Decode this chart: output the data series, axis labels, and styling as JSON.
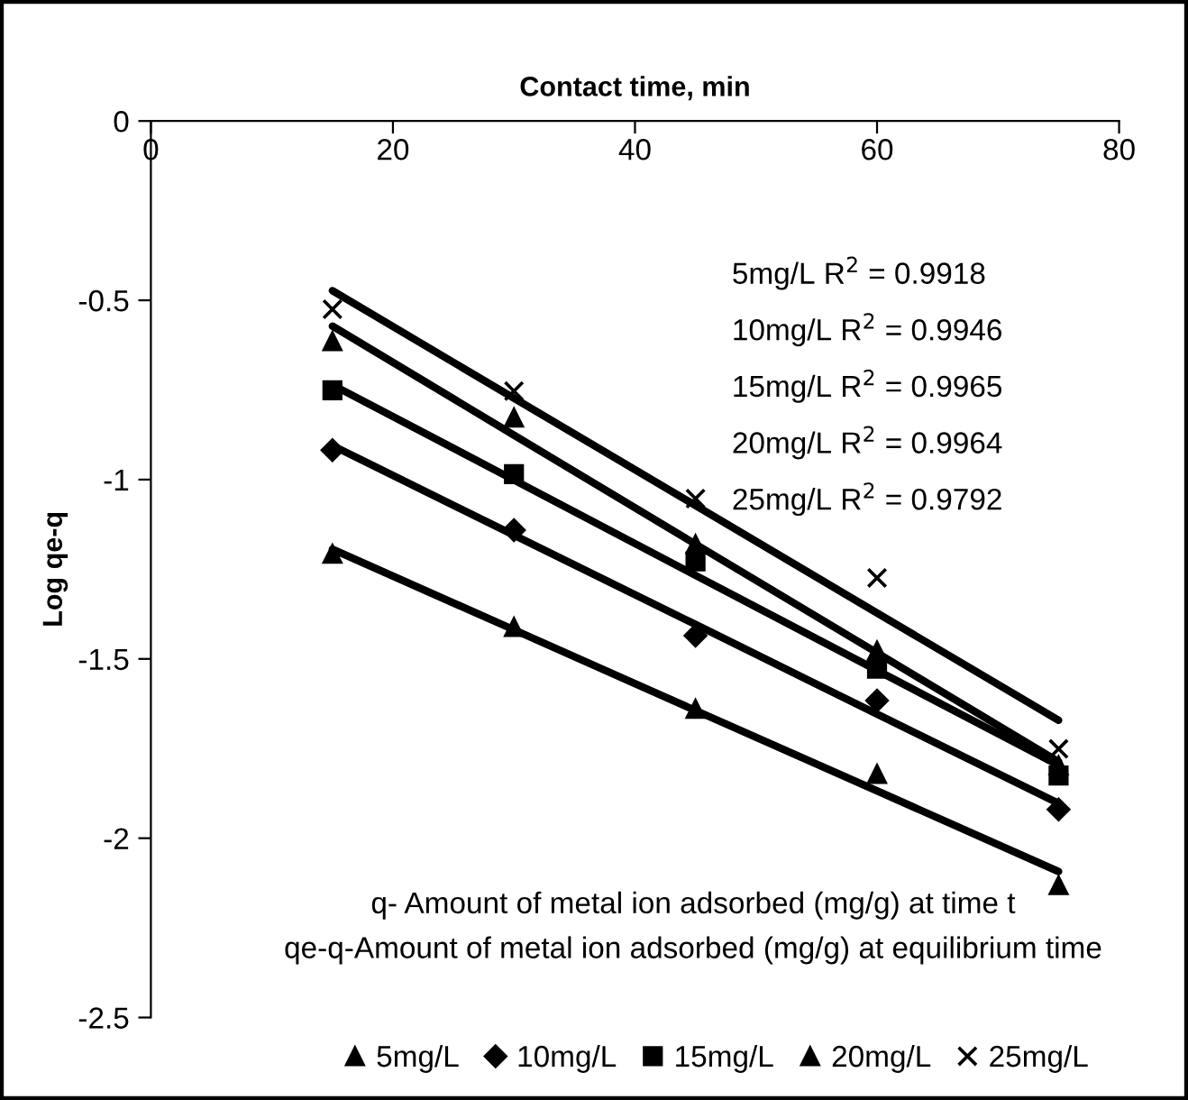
{
  "chart_data": {
    "type": "scatter",
    "xlabel": "Contact time, min",
    "ylabel": "Log qe-q",
    "xlim": [
      0,
      80
    ],
    "xticks": [
      0,
      20,
      40,
      60,
      80
    ],
    "ylim": [
      -2.5,
      0
    ],
    "yticks": [
      0,
      -0.5,
      -1,
      -1.5,
      -2,
      -2.5
    ],
    "grid": false,
    "legend": "bottom",
    "x": [
      15,
      30,
      45,
      60,
      75
    ],
    "series": [
      {
        "name": "5mg/L",
        "color": "#000000",
        "marker": "triangle",
        "values": [
          -1.207,
          -1.411,
          -1.639,
          -1.821,
          -2.131
        ]
      },
      {
        "name": "10mg/L",
        "color": "#000000",
        "marker": "diamond",
        "values": [
          -0.918,
          -1.141,
          -1.435,
          -1.616,
          -1.92
        ]
      },
      {
        "name": "15mg/L",
        "color": "#000000",
        "marker": "square",
        "values": [
          -0.751,
          -0.985,
          -1.228,
          -1.527,
          -1.825
        ]
      },
      {
        "name": "20mg/L",
        "color": "#000000",
        "marker": "triangle",
        "values": [
          -0.614,
          -0.827,
          -1.18,
          -1.477,
          -1.797
        ]
      },
      {
        "name": "25mg/L",
        "color": "#000000",
        "marker": "cross",
        "values": [
          -0.525,
          -0.753,
          -1.053,
          -1.274,
          -1.751
        ]
      },
      {
        "type": "line",
        "color": "#000000",
        "values": [
          -1.194,
          -1.419,
          -1.644,
          -1.868,
          -2.093
        ]
      },
      {
        "type": "line",
        "color": "#000000",
        "values": [
          -0.905,
          -1.155,
          -1.404,
          -1.654,
          -1.903
        ]
      },
      {
        "type": "line",
        "color": "#000000",
        "values": [
          -0.736,
          -1.001,
          -1.267,
          -1.532,
          -1.797
        ]
      },
      {
        "type": "line",
        "color": "#000000",
        "values": [
          -0.572,
          -0.876,
          -1.18,
          -1.483,
          -1.787
        ]
      },
      {
        "type": "line",
        "color": "#000000",
        "values": [
          -0.473,
          -0.773,
          -1.072,
          -1.372,
          -1.671
        ]
      }
    ],
    "annotations": [
      "5mg/L R$^{2}$ = 0.9918",
      "10mg/L R$^{2}$ = 0.9946",
      "15mg/L R$^{2}$ = 0.9965",
      "20mg/L R$^{2}$ = 0.9964",
      "25mg/L R$^{2}$ = 0.9792",
      "q- Amount of metal ion adsorbed (mg/g) at time t",
      "qe-q-Amount of metal ion adsorbed (mg/g) at equilibrium time"
    ]
  }
}
